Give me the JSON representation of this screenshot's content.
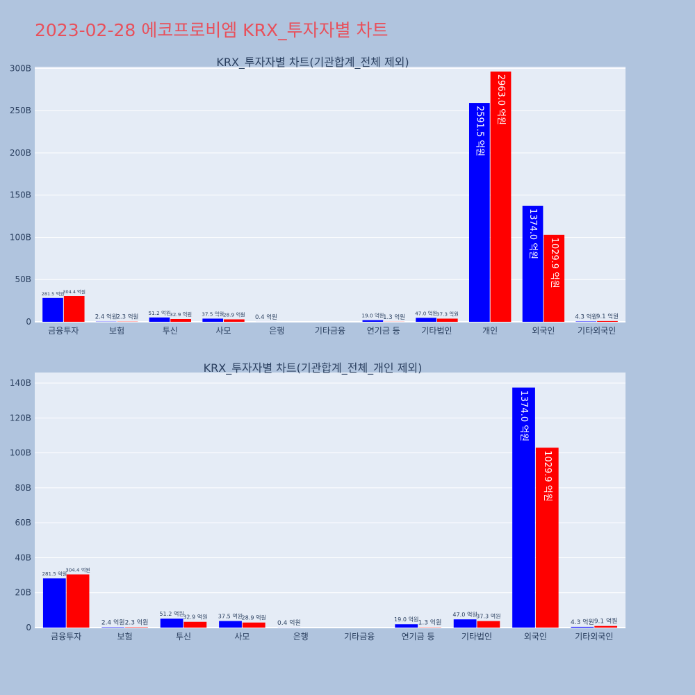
{
  "page": {
    "title": "2023-02-28 에코프로비엠 KRX_투자자별 차트",
    "background": "#b0c4de",
    "plot_background": "#e5ecf6",
    "title_color": "#e8505b"
  },
  "chart_data": [
    {
      "type": "bar",
      "title": "KRX_투자자별 차트(기관합계_전체 제외)",
      "categories": [
        "금융투자",
        "보험",
        "투신",
        "사모",
        "은행",
        "기타금융",
        "연기금 등",
        "기타법인",
        "개인",
        "외국인",
        "기타외국인"
      ],
      "ylim": [
        0,
        302
      ],
      "y_ticks": [
        0,
        50,
        100,
        150,
        200,
        250,
        300
      ],
      "y_tick_labels": [
        "0",
        "50B",
        "100B",
        "150B",
        "200B",
        "250B",
        "300B"
      ],
      "grid": true,
      "series": [
        {
          "color": "#0000ff",
          "values": [
            28.15,
            0.24,
            5.12,
            3.75,
            0.04,
            0,
            1.9,
            4.7,
            259.15,
            137.4,
            0.43
          ],
          "labels": [
            "281.5 억원",
            "2.4 억원",
            "51.2 억원",
            "37.5 억원",
            "0.4 억원",
            "",
            "19.0 억원",
            "47.0 억원",
            "2591.5 억원",
            "1374.0 억원",
            "4.3 억원"
          ]
        },
        {
          "color": "#ff0000",
          "values": [
            30.44,
            0.23,
            3.29,
            2.89,
            0,
            0,
            0.13,
            3.73,
            296.3,
            102.99,
            0.91
          ],
          "labels": [
            "304.4 억원",
            "2.3 억원",
            "32.9 억원",
            "28.9 억원",
            "",
            "",
            "1.3 억원",
            "37.3 억원",
            "2963.0 억원",
            "1029.9 억원",
            "9.1 억원"
          ]
        }
      ]
    },
    {
      "type": "bar",
      "title": "KRX_투자자별 차트(기관합계_전체_개인 제외)",
      "categories": [
        "금융투자",
        "보험",
        "투신",
        "사모",
        "은행",
        "기타금융",
        "연기금 등",
        "기타법인",
        "외국인",
        "기타외국인"
      ],
      "ylim": [
        0,
        146
      ],
      "y_ticks": [
        0,
        20,
        40,
        60,
        80,
        100,
        120,
        140
      ],
      "y_tick_labels": [
        "0",
        "20B",
        "40B",
        "60B",
        "80B",
        "100B",
        "120B",
        "140B"
      ],
      "grid": true,
      "series": [
        {
          "color": "#0000ff",
          "values": [
            28.15,
            0.24,
            5.12,
            3.75,
            0.04,
            0,
            1.9,
            4.7,
            137.4,
            0.43
          ],
          "labels": [
            "281.5 억원",
            "2.4 억원",
            "51.2 억원",
            "37.5 억원",
            "0.4 억원",
            "",
            "19.0 억원",
            "47.0 억원",
            "1374.0 억원",
            "4.3 억원"
          ]
        },
        {
          "color": "#ff0000",
          "values": [
            30.44,
            0.23,
            3.29,
            2.89,
            0,
            0,
            0.13,
            3.73,
            102.99,
            0.91
          ],
          "labels": [
            "304.4 억원",
            "2.3 억원",
            "32.9 억원",
            "28.9 억원",
            "",
            "",
            "1.3 억원",
            "37.3 억원",
            "1029.9 억원",
            "9.1 억원"
          ]
        }
      ]
    }
  ]
}
